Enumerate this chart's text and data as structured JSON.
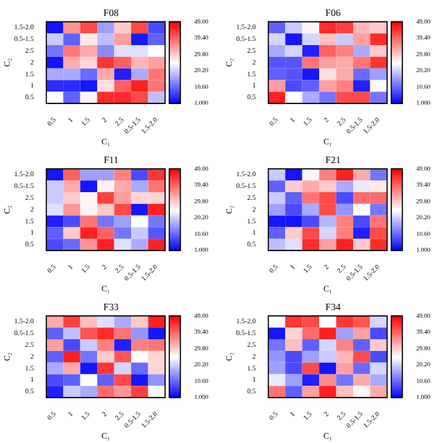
{
  "chart_data": [
    {
      "type": "heatmap",
      "title": "F08",
      "xlabel": "C₁",
      "ylabel": "C₂",
      "categories": [
        "0.5",
        "1",
        "1.5",
        "2",
        "2.5",
        "0.5-1.5",
        "1.5-2.0"
      ],
      "y_categories": [
        "1.5-2.0",
        "0.5-1.5",
        "2.5",
        "2",
        "1.5",
        "1",
        "0.5"
      ],
      "clim": [
        1,
        49
      ],
      "cticks": [
        {
          "value": 1,
          "label": "1.000"
        },
        {
          "value": 10.6,
          "label": "10.60"
        },
        {
          "value": 20.2,
          "label": "20.20"
        },
        {
          "value": 29.8,
          "label": "29.80"
        },
        {
          "value": 39.4,
          "label": "39.40"
        },
        {
          "value": 49,
          "label": "49.00"
        }
      ],
      "cells": [
        [
          3,
          35,
          42,
          16,
          30,
          42,
          8
        ],
        [
          20,
          10,
          27,
          19,
          34,
          3,
          10
        ],
        [
          12,
          38,
          33,
          14,
          22,
          22,
          25
        ],
        [
          3,
          33,
          29,
          44,
          40,
          32,
          34
        ],
        [
          17,
          17,
          11,
          33,
          4,
          17,
          38
        ],
        [
          5,
          5,
          3,
          28,
          40,
          46,
          38
        ],
        [
          25,
          10,
          26,
          45,
          45,
          42,
          19
        ]
      ]
    },
    {
      "type": "heatmap",
      "title": "F06",
      "xlabel": "C₁",
      "ylabel": "C₂",
      "categories": [
        "0.5",
        "1",
        "1.5",
        "2",
        "2.5",
        "0.5-1.5",
        "1.5-2.0"
      ],
      "y_categories": [
        "1.5-2.0",
        "0.5-1.5",
        "2.5",
        "2",
        "1.5",
        "1",
        "0.5"
      ],
      "clim": [
        1,
        49
      ],
      "cticks": [
        {
          "value": 1,
          "label": "1.000"
        },
        {
          "value": 10.6,
          "label": "10.60"
        },
        {
          "value": 20.2,
          "label": "20.20"
        },
        {
          "value": 29.8,
          "label": "29.80"
        },
        {
          "value": 39.4,
          "label": "39.40"
        },
        {
          "value": 49,
          "label": "49.00"
        }
      ],
      "cells": [
        [
          10,
          20,
          26,
          45,
          43,
          32,
          30
        ],
        [
          21,
          3,
          21,
          31,
          20,
          34,
          45
        ],
        [
          17,
          21,
          4,
          40,
          37,
          17,
          30
        ],
        [
          9,
          9,
          38,
          34,
          33,
          38,
          44
        ],
        [
          10,
          9,
          3,
          28,
          33,
          11,
          16
        ],
        [
          34,
          8,
          10,
          34,
          37,
          4,
          25
        ],
        [
          46,
          25,
          17,
          12,
          42,
          42,
          12
        ]
      ]
    },
    {
      "type": "heatmap",
      "title": "F11",
      "xlabel": "C₁",
      "ylabel": "C₂",
      "categories": [
        "0.5",
        "1",
        "1.5",
        "2",
        "2.5",
        "0.5-1.5",
        "1.5-2.0"
      ],
      "y_categories": [
        "1.5-2.0",
        "0.5-1.5",
        "2.5",
        "2",
        "1.5",
        "1",
        "0.5"
      ],
      "clim": [
        1,
        49
      ],
      "cticks": [
        {
          "value": 1,
          "label": "1.000"
        },
        {
          "value": 10.6,
          "label": "10.60"
        },
        {
          "value": 20.2,
          "label": "20.20"
        },
        {
          "value": 29.8,
          "label": "29.80"
        },
        {
          "value": 39.4,
          "label": "39.40"
        },
        {
          "value": 49,
          "label": "49.00"
        }
      ],
      "cells": [
        [
          3,
          40,
          16,
          16,
          37,
          8,
          44
        ],
        [
          20,
          33,
          3,
          26,
          33,
          17,
          38
        ],
        [
          20,
          30,
          26,
          43,
          34,
          29,
          29
        ],
        [
          22,
          35,
          26,
          30,
          42,
          3,
          46
        ],
        [
          4,
          8,
          38,
          12,
          16,
          25,
          12
        ],
        [
          10,
          30,
          46,
          40,
          12,
          20,
          9
        ],
        [
          8,
          11,
          35,
          46,
          22,
          17,
          46
        ]
      ]
    },
    {
      "type": "heatmap",
      "title": "F21",
      "xlabel": "C₁",
      "ylabel": "C₂",
      "categories": [
        "0.5",
        "1",
        "1.5",
        "2",
        "2.5",
        "0.5-1.5",
        "1.5-2.0"
      ],
      "y_categories": [
        "1.5-2.0",
        "0.5-1.5",
        "2.5",
        "2",
        "1.5",
        "1",
        "0.5"
      ],
      "clim": [
        1,
        49
      ],
      "cticks": [
        {
          "value": 1,
          "label": "1.000"
        },
        {
          "value": 10.6,
          "label": "10.60"
        },
        {
          "value": 20.2,
          "label": "20.20"
        },
        {
          "value": 29.8,
          "label": "29.80"
        },
        {
          "value": 39.4,
          "label": "39.40"
        },
        {
          "value": 49,
          "label": "49.00"
        }
      ],
      "cells": [
        [
          20,
          3,
          26,
          37,
          46,
          33,
          12
        ],
        [
          10,
          30,
          33,
          30,
          17,
          23,
          27
        ],
        [
          20,
          10,
          38,
          42,
          8,
          39,
          39
        ],
        [
          16,
          8,
          17,
          42,
          15,
          25,
          12
        ],
        [
          3,
          3,
          8,
          18,
          37,
          8,
          38
        ],
        [
          10,
          30,
          42,
          21,
          37,
          4,
          42
        ],
        [
          19,
          22,
          45,
          34,
          46,
          30,
          45
        ]
      ]
    },
    {
      "type": "heatmap",
      "title": "F33",
      "xlabel": "C₁",
      "ylabel": "C₂",
      "categories": [
        "0.5",
        "1",
        "1.5",
        "2",
        "2.5",
        "0.5-1.5",
        "1.5-2.0"
      ],
      "y_categories": [
        "1.5-2.0",
        "0.5-1.5",
        "2.5",
        "2",
        "1.5",
        "1",
        "0.5"
      ],
      "clim": [
        1,
        49
      ],
      "cticks": [
        {
          "value": 1,
          "label": "1.000"
        },
        {
          "value": 10.6,
          "label": "10.60"
        },
        {
          "value": 20.2,
          "label": "20.20"
        },
        {
          "value": 29.8,
          "label": "29.80"
        },
        {
          "value": 39.4,
          "label": "39.40"
        },
        {
          "value": 49,
          "label": "49.00"
        }
      ],
      "cells": [
        [
          33,
          43,
          31,
          22,
          17,
          30,
          46
        ],
        [
          10,
          19,
          41,
          45,
          38,
          15,
          3
        ],
        [
          34,
          8,
          20,
          37,
          4,
          37,
          38
        ],
        [
          10,
          46,
          12,
          30,
          41,
          25,
          29
        ],
        [
          17,
          33,
          3,
          44,
          21,
          11,
          29
        ],
        [
          8,
          10,
          25,
          10,
          42,
          3,
          15
        ],
        [
          4,
          20,
          17,
          39,
          35,
          43,
          25
        ]
      ]
    },
    {
      "type": "heatmap",
      "title": "F34",
      "xlabel": "C₁",
      "ylabel": "C₂",
      "categories": [
        "0.5",
        "1",
        "1.5",
        "2",
        "2.5",
        "0.5-1.5",
        "1.5-2.0"
      ],
      "y_categories": [
        "1.5-2.0",
        "0.5-1.5",
        "2.5",
        "2",
        "1.5",
        "1",
        "0.5"
      ],
      "clim": [
        1,
        49
      ],
      "cticks": [
        {
          "value": 1,
          "label": "1.000"
        },
        {
          "value": 10.6,
          "label": "10.60"
        },
        {
          "value": 20.2,
          "label": "20.20"
        },
        {
          "value": 29.8,
          "label": "29.80"
        },
        {
          "value": 39.4,
          "label": "39.40"
        },
        {
          "value": 49,
          "label": "49.00"
        }
      ],
      "cells": [
        [
          25,
          44,
          42,
          25,
          44,
          41,
          21
        ],
        [
          3,
          29,
          39,
          46,
          16,
          34,
          8
        ],
        [
          12,
          31,
          10,
          21,
          37,
          10,
          30
        ],
        [
          15,
          8,
          16,
          20,
          32,
          42,
          8
        ],
        [
          16,
          8,
          42,
          3,
          34,
          11,
          21
        ],
        [
          23,
          16,
          4,
          36,
          12,
          33,
          17
        ],
        [
          38,
          10,
          34,
          46,
          31,
          26,
          33
        ]
      ]
    }
  ]
}
